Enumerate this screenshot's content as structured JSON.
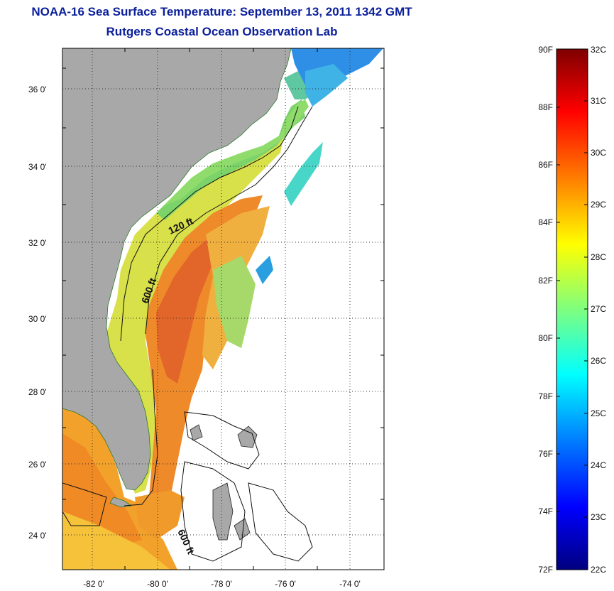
{
  "header": {
    "title": "NOAA-16 Sea Surface Temperature:  September 13, 2011 1342 GMT",
    "subtitle": "Rutgers Coastal Ocean Observation Lab"
  },
  "map": {
    "lat_labels": [
      "36 0'",
      "34 0'",
      "32 0'",
      "30 0'",
      "28 0'",
      "26 0'",
      "24 0'"
    ],
    "lon_labels": [
      "-82 0'",
      "-80 0'",
      "-78 0'",
      "-76 0'",
      "-74 0'"
    ],
    "contour_labels": [
      "120 ft",
      "600 ft",
      "600 ft"
    ],
    "land_color": "#a8a8a8",
    "missing_data_color": "#ffffff"
  },
  "colorbar": {
    "fahrenheit_labels": [
      "90F",
      "88F",
      "86F",
      "84F",
      "82F",
      "80F",
      "78F",
      "76F",
      "74F",
      "72F"
    ],
    "celsius_labels": [
      "32C",
      "31C",
      "30C",
      "29C",
      "28C",
      "27C",
      "26C",
      "25C",
      "24C",
      "23C",
      "22C"
    ],
    "colors": [
      "#00007f",
      "#0000ff",
      "#007fff",
      "#00ffff",
      "#7fff7f",
      "#ffff00",
      "#ff7f00",
      "#ff0000",
      "#7f0000"
    ]
  }
}
